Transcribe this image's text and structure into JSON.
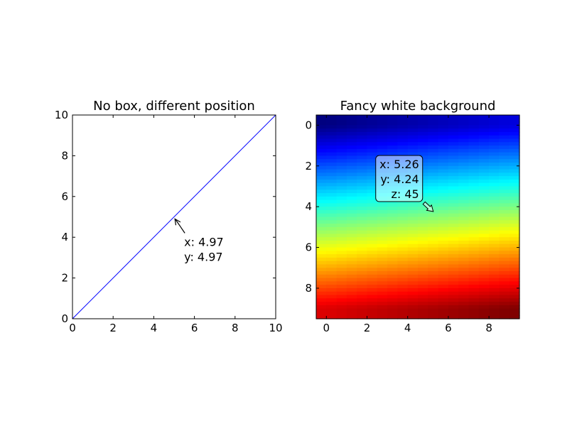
{
  "figure": {
    "background": "#ffffff"
  },
  "chart_data": [
    {
      "type": "line",
      "title": "No box, different position",
      "xlabel": "",
      "ylabel": "",
      "xlim": [
        0,
        10
      ],
      "ylim": [
        0,
        10
      ],
      "xticks": [
        "0",
        "2",
        "4",
        "6",
        "8",
        "10"
      ],
      "yticks": [
        "0",
        "2",
        "4",
        "6",
        "8",
        "10"
      ],
      "grid": false,
      "series": [
        {
          "x": [
            0,
            10
          ],
          "y": [
            0,
            10
          ],
          "color": "#0000ff"
        }
      ],
      "annotation": {
        "target": [
          4.97,
          4.97
        ],
        "lines": [
          "x: 4.97",
          "y: 4.97"
        ],
        "box": false,
        "arrow_color": "#000000"
      }
    },
    {
      "type": "heatmap",
      "title": "Fancy white background",
      "xlabel": "",
      "ylabel": "",
      "colormap": "jet",
      "xlim": [
        -0.5,
        9.5
      ],
      "ylim": [
        9.5,
        -0.5
      ],
      "xticks": [
        "0",
        "2",
        "4",
        "6",
        "8"
      ],
      "yticks": [
        "0",
        "2",
        "4",
        "6",
        "8"
      ],
      "grid": false,
      "value_range": [
        0,
        99
      ],
      "values": [
        [
          0,
          1,
          2,
          3,
          4,
          5,
          6,
          7,
          8,
          9
        ],
        [
          10,
          11,
          12,
          13,
          14,
          15,
          16,
          17,
          18,
          19
        ],
        [
          20,
          21,
          22,
          23,
          24,
          25,
          26,
          27,
          28,
          29
        ],
        [
          30,
          31,
          32,
          33,
          34,
          35,
          36,
          37,
          38,
          39
        ],
        [
          40,
          41,
          42,
          43,
          44,
          45,
          46,
          47,
          48,
          49
        ],
        [
          50,
          51,
          52,
          53,
          54,
          55,
          56,
          57,
          58,
          59
        ],
        [
          60,
          61,
          62,
          63,
          64,
          65,
          66,
          67,
          68,
          69
        ],
        [
          70,
          71,
          72,
          73,
          74,
          75,
          76,
          77,
          78,
          79
        ],
        [
          80,
          81,
          82,
          83,
          84,
          85,
          86,
          87,
          88,
          89
        ],
        [
          90,
          91,
          92,
          93,
          94,
          95,
          96,
          97,
          98,
          99
        ]
      ],
      "annotation": {
        "target": [
          5.26,
          4.24
        ],
        "lines": [
          "x: 5.26",
          "y: 4.24",
          "z: 45"
        ],
        "box": true,
        "box_color": "#ffffff",
        "arrow_style": "fancy"
      }
    }
  ]
}
